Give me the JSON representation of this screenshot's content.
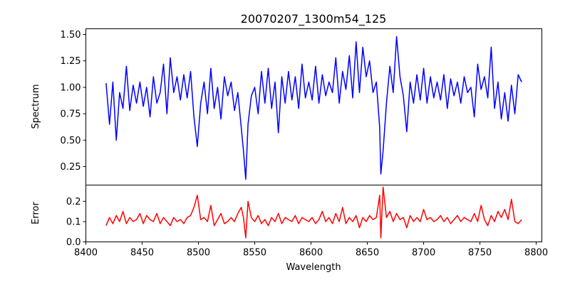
{
  "chart_data": [
    {
      "type": "line",
      "title": "20070207_1300m54_125",
      "xlabel": "",
      "ylabel": "Spectrum",
      "xlim": [
        8400,
        8805
      ],
      "ylim": [
        0.075,
        1.554
      ],
      "yticks": [
        "0.25",
        "0.50",
        "0.75",
        "1.00",
        "1.25",
        "1.50"
      ],
      "ytick_values": [
        0.25,
        0.5,
        0.75,
        1.0,
        1.25,
        1.5
      ],
      "color": "#0000ff",
      "series": [
        {
          "name": "Spectrum",
          "x": [
            8418,
            8421,
            8424,
            8427,
            8430,
            8433,
            8436,
            8439,
            8442,
            8445,
            8448,
            8451,
            8454,
            8457,
            8460,
            8463,
            8466,
            8469,
            8472,
            8475,
            8478,
            8481,
            8484,
            8487,
            8490,
            8493,
            8496,
            8499,
            8502,
            8505,
            8508,
            8511,
            8514,
            8517,
            8520,
            8523,
            8526,
            8529,
            8532,
            8535,
            8538,
            8540,
            8542,
            8544,
            8547,
            8550,
            8553,
            8556,
            8559,
            8562,
            8565,
            8568,
            8571,
            8574,
            8577,
            8580,
            8583,
            8586,
            8589,
            8592,
            8595,
            8598,
            8601,
            8604,
            8607,
            8610,
            8613,
            8616,
            8619,
            8622,
            8625,
            8628,
            8631,
            8634,
            8637,
            8640,
            8643,
            8646,
            8649,
            8652,
            8655,
            8658,
            8661,
            8662,
            8664,
            8667,
            8670,
            8673,
            8676,
            8679,
            8682,
            8685,
            8688,
            8691,
            8694,
            8697,
            8700,
            8703,
            8706,
            8709,
            8712,
            8715,
            8718,
            8721,
            8724,
            8727,
            8730,
            8733,
            8736,
            8739,
            8742,
            8745,
            8748,
            8751,
            8754,
            8757,
            8760,
            8763,
            8766,
            8769,
            8772,
            8775,
            8778,
            8781,
            8784,
            8787
          ],
          "y": [
            1.04,
            0.65,
            1.05,
            0.5,
            0.95,
            0.8,
            1.2,
            0.78,
            1.02,
            0.85,
            1.05,
            0.82,
            1.0,
            0.72,
            1.1,
            0.85,
            0.95,
            1.22,
            0.75,
            1.28,
            0.95,
            1.1,
            0.88,
            1.12,
            0.9,
            1.15,
            0.72,
            0.44,
            0.85,
            1.05,
            0.75,
            1.18,
            0.8,
            1.0,
            0.7,
            1.1,
            0.92,
            1.05,
            0.78,
            0.95,
            0.62,
            0.4,
            0.13,
            0.65,
            0.92,
            1.0,
            0.75,
            1.15,
            0.85,
            1.18,
            0.8,
            1.05,
            0.57,
            1.1,
            0.85,
            1.15,
            0.88,
            1.1,
            0.8,
            1.22,
            0.9,
            1.05,
            0.88,
            1.2,
            0.85,
            1.12,
            0.92,
            1.05,
            0.95,
            1.28,
            0.85,
            1.15,
            0.98,
            1.3,
            0.9,
            1.43,
            0.95,
            1.38,
            1.1,
            1.25,
            0.95,
            1.05,
            0.62,
            0.18,
            0.4,
            0.85,
            1.2,
            0.95,
            1.48,
            1.1,
            0.92,
            0.58,
            1.05,
            0.85,
            1.12,
            0.88,
            1.18,
            0.85,
            1.1,
            0.9,
            1.05,
            0.88,
            1.12,
            0.8,
            1.08,
            0.92,
            1.05,
            0.85,
            1.1,
            0.95,
            1.0,
            0.72,
            1.22,
            0.98,
            1.1,
            0.9,
            1.38,
            0.8,
            1.05,
            0.7,
            0.95,
            0.68,
            1.02,
            0.75,
            1.12,
            1.05
          ]
        }
      ]
    },
    {
      "type": "line",
      "title": "",
      "xlabel": "Wavelength",
      "ylabel": "Error",
      "xlim": [
        8400,
        8805
      ],
      "ylim": [
        0,
        0.28
      ],
      "xticks": [
        "8400",
        "8450",
        "8500",
        "8550",
        "8600",
        "8650",
        "8700",
        "8750",
        "8800"
      ],
      "xtick_values": [
        8400,
        8450,
        8500,
        8550,
        8600,
        8650,
        8700,
        8750,
        8800
      ],
      "yticks": [
        "0.0",
        "0.1",
        "0.2"
      ],
      "ytick_values": [
        0,
        0.1,
        0.2
      ],
      "color": "#ff0000",
      "series": [
        {
          "name": "Error",
          "x": [
            8418,
            8421,
            8424,
            8427,
            8430,
            8433,
            8436,
            8439,
            8442,
            8445,
            8448,
            8451,
            8454,
            8457,
            8460,
            8463,
            8466,
            8469,
            8472,
            8475,
            8478,
            8481,
            8484,
            8487,
            8490,
            8493,
            8496,
            8499,
            8502,
            8505,
            8508,
            8511,
            8514,
            8517,
            8520,
            8523,
            8526,
            8529,
            8532,
            8535,
            8538,
            8540,
            8542,
            8544,
            8547,
            8550,
            8553,
            8556,
            8559,
            8562,
            8565,
            8568,
            8571,
            8574,
            8577,
            8580,
            8583,
            8586,
            8589,
            8592,
            8595,
            8598,
            8601,
            8604,
            8607,
            8610,
            8613,
            8616,
            8619,
            8622,
            8625,
            8628,
            8631,
            8634,
            8637,
            8640,
            8643,
            8646,
            8649,
            8652,
            8655,
            8658,
            8661,
            8662,
            8664,
            8667,
            8670,
            8673,
            8676,
            8679,
            8682,
            8685,
            8688,
            8691,
            8694,
            8697,
            8700,
            8703,
            8706,
            8709,
            8712,
            8715,
            8718,
            8721,
            8724,
            8727,
            8730,
            8733,
            8736,
            8739,
            8742,
            8745,
            8748,
            8751,
            8754,
            8757,
            8760,
            8763,
            8766,
            8769,
            8772,
            8775,
            8778,
            8781,
            8784,
            8787
          ],
          "y": [
            0.08,
            0.12,
            0.09,
            0.13,
            0.1,
            0.15,
            0.09,
            0.12,
            0.1,
            0.11,
            0.14,
            0.09,
            0.13,
            0.11,
            0.1,
            0.14,
            0.09,
            0.12,
            0.1,
            0.08,
            0.12,
            0.1,
            0.11,
            0.09,
            0.12,
            0.13,
            0.17,
            0.23,
            0.11,
            0.12,
            0.1,
            0.18,
            0.08,
            0.11,
            0.14,
            0.09,
            0.1,
            0.12,
            0.1,
            0.14,
            0.17,
            0.12,
            0.02,
            0.2,
            0.12,
            0.1,
            0.13,
            0.09,
            0.11,
            0.08,
            0.12,
            0.1,
            0.14,
            0.09,
            0.12,
            0.11,
            0.1,
            0.13,
            0.09,
            0.12,
            0.11,
            0.1,
            0.12,
            0.09,
            0.11,
            0.15,
            0.1,
            0.12,
            0.09,
            0.14,
            0.1,
            0.17,
            0.09,
            0.12,
            0.1,
            0.13,
            0.07,
            0.12,
            0.1,
            0.13,
            0.11,
            0.12,
            0.23,
            0.02,
            0.27,
            0.12,
            0.15,
            0.1,
            0.14,
            0.11,
            0.12,
            0.07,
            0.13,
            0.1,
            0.12,
            0.1,
            0.16,
            0.11,
            0.12,
            0.1,
            0.11,
            0.13,
            0.1,
            0.12,
            0.09,
            0.11,
            0.13,
            0.1,
            0.12,
            0.11,
            0.1,
            0.14,
            0.1,
            0.18,
            0.11,
            0.08,
            0.13,
            0.1,
            0.15,
            0.12,
            0.16,
            0.11,
            0.21,
            0.1,
            0.09,
            0.11
          ]
        }
      ]
    }
  ]
}
